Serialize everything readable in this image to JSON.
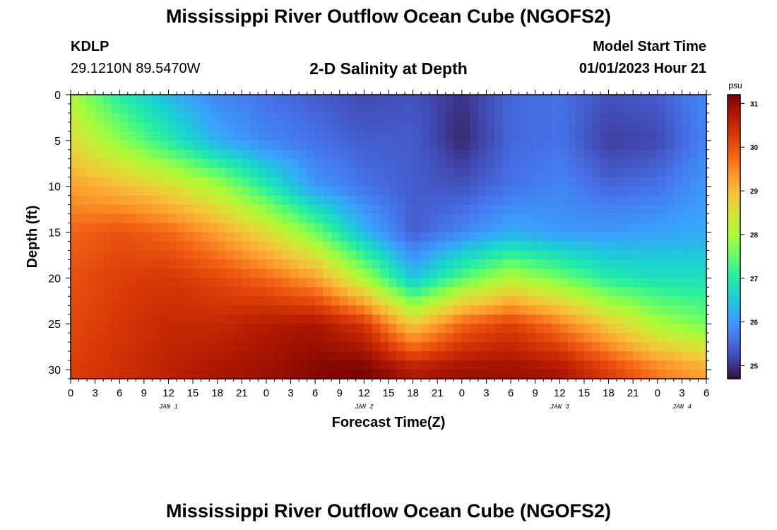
{
  "header": {
    "title": "Mississippi River Outflow Ocean Cube (NGOFS2)",
    "station": "KDLP",
    "coords": "29.1210N  89.5470W",
    "subtitle": "2-D Salinity at Depth",
    "model_start_label": "Model Start Time",
    "model_start_value": "01/01/2023 Hour 21"
  },
  "footer": {
    "title": "Mississippi River Outflow Ocean Cube (NGOFS2)"
  },
  "chart_data": {
    "type": "heatmap",
    "xlabel": "Forecast Time(Z)",
    "ylabel": "Depth (ft)",
    "x_tick_labels": [
      "0",
      "3",
      "6",
      "9",
      "12",
      "15",
      "18",
      "21",
      "0",
      "3",
      "6",
      "9",
      "12",
      "15",
      "18",
      "21",
      "0",
      "3",
      "6",
      "9",
      "12",
      "15",
      "18",
      "21",
      "0",
      "3",
      "6"
    ],
    "x_date_labels": [
      {
        "label": "JAN 1",
        "at_hour": 12
      },
      {
        "label": "JAN 2",
        "at_hour": 36
      },
      {
        "label": "JAN 3",
        "at_hour": 60
      },
      {
        "label": "JAN 4",
        "at_hour": 75
      }
    ],
    "xlim_hours": [
      0,
      78
    ],
    "y_ticks": [
      0,
      5,
      10,
      15,
      20,
      25,
      30
    ],
    "ylim": [
      0,
      31
    ],
    "y_inverted": true,
    "colorbar": {
      "unit": "psu",
      "ticks": [
        25,
        26,
        27,
        28,
        29,
        30,
        31
      ],
      "range": [
        24.7,
        31.2
      ],
      "colors": [
        "#30123b",
        "#4145ab",
        "#4675ed",
        "#39a2fc",
        "#1bcfd4",
        "#24eca6",
        "#61fc6c",
        "#a4fc3b",
        "#d1e834",
        "#f3c63a",
        "#fe9b2d",
        "#f36315",
        "#d93806",
        "#b11901",
        "#7a0402"
      ]
    },
    "salinity_grid": {
      "times_hours": [
        0,
        6,
        12,
        18,
        24,
        30,
        36,
        42,
        48,
        54,
        60,
        66,
        72,
        78
      ],
      "depths_ft": [
        0,
        5,
        10,
        15,
        20,
        25,
        30
      ],
      "values_psu": [
        [
          28.0,
          27.0,
          26.3,
          25.8,
          25.6,
          25.4,
          25.2,
          25.3,
          25.0,
          25.5,
          25.6,
          25.3,
          25.4,
          25.8
        ],
        [
          28.6,
          27.8,
          27.0,
          26.2,
          25.8,
          25.6,
          25.4,
          25.4,
          24.9,
          25.5,
          25.6,
          25.1,
          25.2,
          25.8
        ],
        [
          29.3,
          29.0,
          28.6,
          28.0,
          27.0,
          26.0,
          25.6,
          25.4,
          25.3,
          25.6,
          25.8,
          25.5,
          25.6,
          26.0
        ],
        [
          29.8,
          30.0,
          29.8,
          29.3,
          28.6,
          27.6,
          26.3,
          25.4,
          25.8,
          26.2,
          26.0,
          26.0,
          26.1,
          26.2
        ],
        [
          30.0,
          30.2,
          30.3,
          30.1,
          29.8,
          29.3,
          28.0,
          26.4,
          27.4,
          28.1,
          27.6,
          27.0,
          26.8,
          26.8
        ],
        [
          30.1,
          30.3,
          30.5,
          30.5,
          30.7,
          30.8,
          30.3,
          28.8,
          29.8,
          30.2,
          29.6,
          28.8,
          28.0,
          27.6
        ],
        [
          30.2,
          30.4,
          30.6,
          30.8,
          30.9,
          31.1,
          31.2,
          30.7,
          30.9,
          30.9,
          30.8,
          30.2,
          29.6,
          29.2
        ]
      ]
    }
  }
}
